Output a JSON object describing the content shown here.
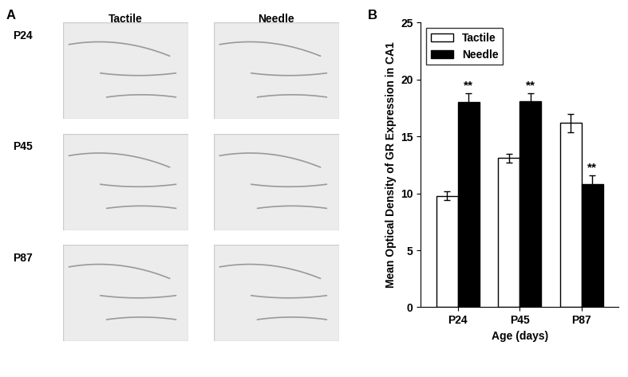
{
  "panel_a": {
    "label": "A",
    "columns": [
      "Tactile",
      "Needle"
    ],
    "rows": [
      "P24",
      "P45",
      "P87"
    ]
  },
  "panel_b_label": "B",
  "chart_data": {
    "type": "bar",
    "x_label": "Age (days)",
    "y_label": "Mean Optical Density of GR Expression in CA1",
    "categories": [
      "P24",
      "P45",
      "P87"
    ],
    "series": [
      {
        "name": "Tactile",
        "color": "#ffffff",
        "values": [
          9.8,
          13.1,
          16.2
        ],
        "errors": [
          0.4,
          0.4,
          0.8
        ]
      },
      {
        "name": "Needle",
        "color": "#000000",
        "values": [
          18.0,
          18.1,
          10.8
        ],
        "errors": [
          0.8,
          0.7,
          0.8
        ]
      }
    ],
    "annotations": [
      {
        "category": "P24",
        "series": "Needle",
        "text": "**"
      },
      {
        "category": "P45",
        "series": "Needle",
        "text": "**"
      },
      {
        "category": "P87",
        "series": "Needle",
        "text": "**"
      }
    ],
    "ylim": [
      0,
      25
    ],
    "yticks": [
      0,
      5,
      10,
      15,
      20,
      25
    ],
    "legend": "upper left",
    "grid": false
  }
}
